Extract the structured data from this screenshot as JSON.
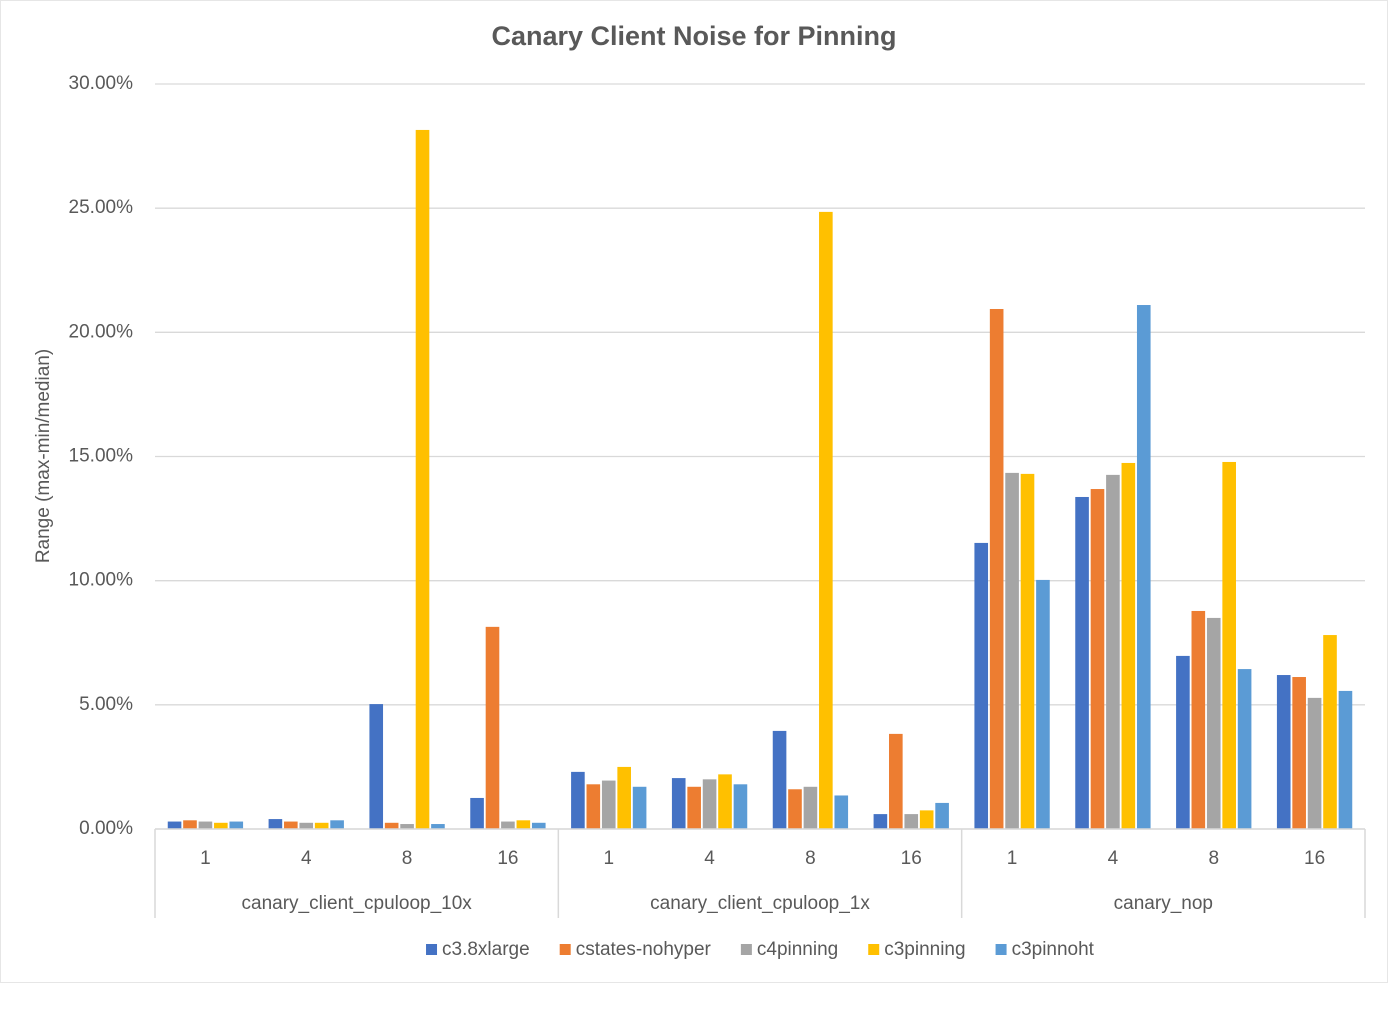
{
  "chart_data": {
    "type": "bar",
    "title": "Canary Client Noise for Pinning",
    "y_label": "Range (max-min/median)",
    "groups": [
      {
        "name": "canary_client_cpuloop_10x",
        "categories": [
          "1",
          "4",
          "8",
          "16"
        ]
      },
      {
        "name": "canary_client_cpuloop_1x",
        "categories": [
          "1",
          "4",
          "8",
          "16"
        ]
      },
      {
        "name": "canary_nop",
        "categories": [
          "1",
          "4",
          "8",
          "16"
        ]
      }
    ],
    "series": [
      {
        "name": "c3.8xlarge",
        "color": "#4472c4",
        "values": [
          0.3,
          0.4,
          5.03,
          1.25,
          2.3,
          2.05,
          3.95,
          0.6,
          11.52,
          13.37,
          6.97,
          6.2
        ]
      },
      {
        "name": "cstates-nohyper",
        "color": "#ed7d31",
        "values": [
          0.35,
          0.3,
          0.25,
          8.14,
          1.8,
          1.7,
          1.6,
          3.83,
          20.94,
          13.69,
          8.78,
          6.12
        ]
      },
      {
        "name": "c4pinning",
        "color": "#a5a5a5",
        "values": [
          0.3,
          0.25,
          0.2,
          0.3,
          1.95,
          2.0,
          1.7,
          0.6,
          14.34,
          14.26,
          8.5,
          5.28
        ]
      },
      {
        "name": "c3pinning",
        "color": "#ffc000",
        "values": [
          0.25,
          0.25,
          28.15,
          0.35,
          2.5,
          2.2,
          24.85,
          0.75,
          14.3,
          14.74,
          14.78,
          7.81
        ]
      },
      {
        "name": "c3pinnoht",
        "color": "#5b9bd5",
        "values": [
          0.3,
          0.35,
          0.2,
          0.25,
          1.7,
          1.8,
          1.35,
          1.05,
          10.03,
          21.1,
          6.44,
          5.56
        ]
      }
    ],
    "ylim": [
      0,
      30
    ],
    "yticks": [
      {
        "value": 0,
        "label": "0.00%"
      },
      {
        "value": 5,
        "label": "5.00%"
      },
      {
        "value": 10,
        "label": "10.00%"
      },
      {
        "value": 15,
        "label": "15.00%"
      },
      {
        "value": 20,
        "label": "20.00%"
      },
      {
        "value": 25,
        "label": "25.00%"
      },
      {
        "value": 30,
        "label": "30.00%"
      }
    ],
    "grid": true,
    "legend": "bottom"
  }
}
